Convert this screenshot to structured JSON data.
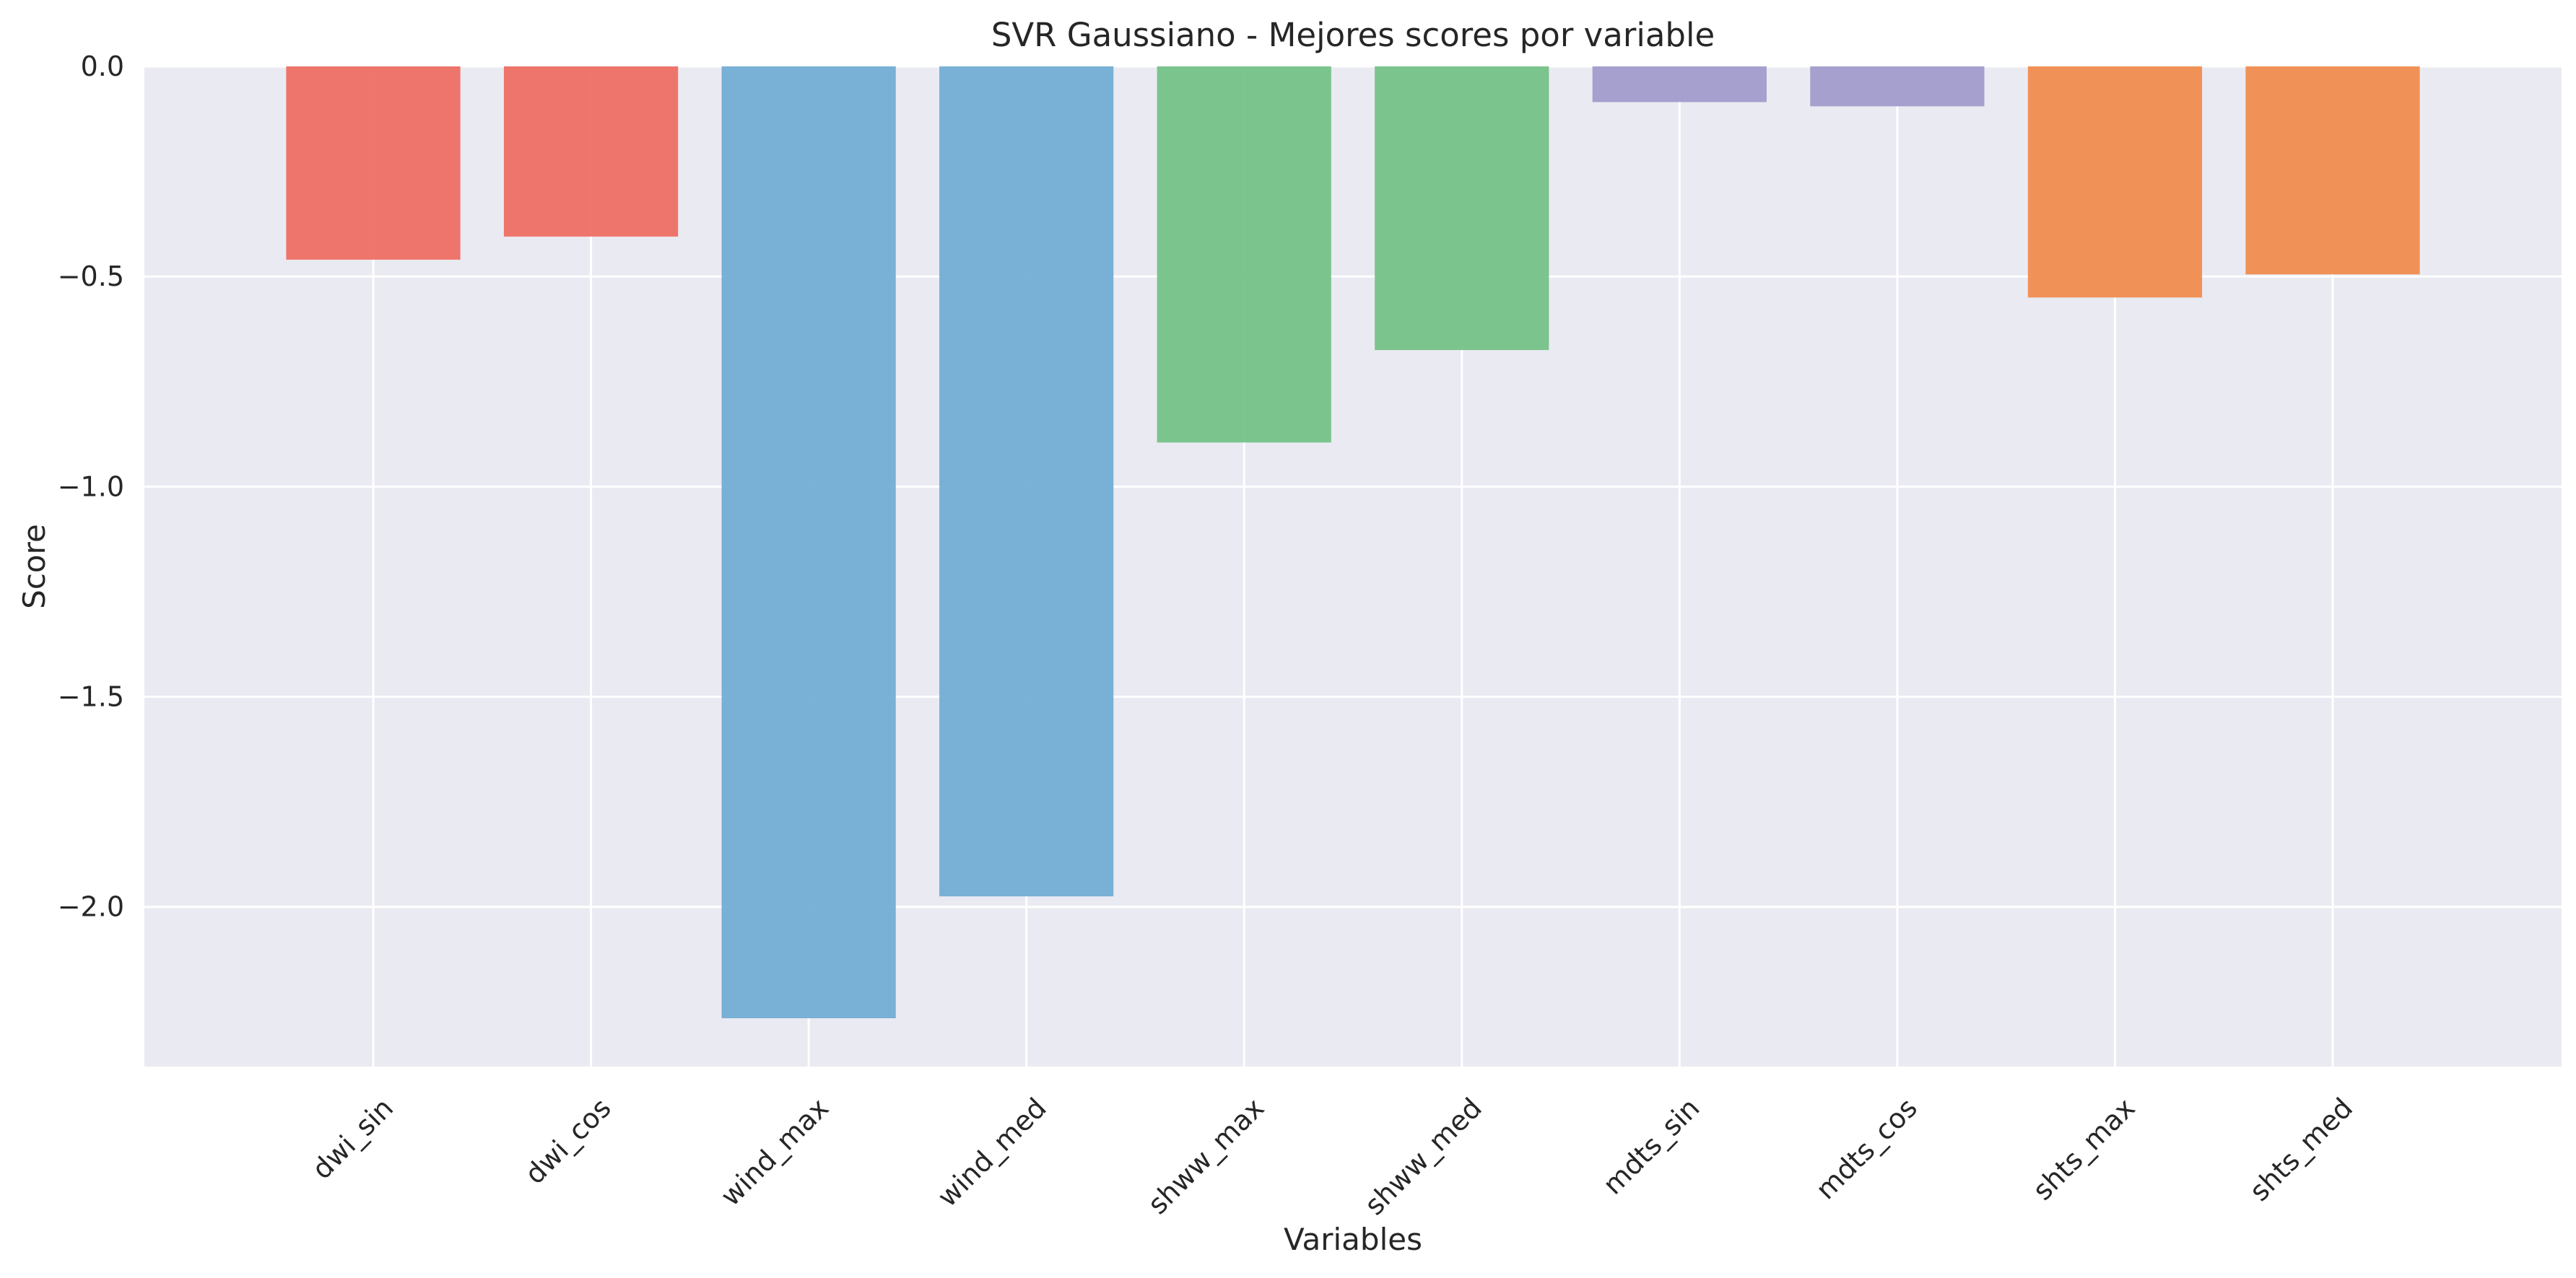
{
  "chart_data": {
    "type": "bar",
    "title": "SVR Gaussiano - Mejores scores por variable",
    "xlabel": "Variables",
    "ylabel": "Score",
    "categories": [
      "dwi_sin",
      "dwi_cos",
      "wind_max",
      "wind_med",
      "shww_max",
      "shww_med",
      "mdts_sin",
      "mdts_cos",
      "shts_max",
      "shts_med"
    ],
    "values": [
      -0.46,
      -0.405,
      -2.265,
      -1.975,
      -0.895,
      -0.675,
      -0.085,
      -0.095,
      -0.55,
      -0.495
    ],
    "colors": [
      "#ee6a60",
      "#ee6a60",
      "#6faad3",
      "#6faad3",
      "#72c084",
      "#72c084",
      "#9e99ca",
      "#9e99ca",
      "#f08a4b",
      "#f08a4b"
    ],
    "ylim": [
      -2.38,
      0.0
    ],
    "yticks": [
      0.0,
      -0.5,
      -1.0,
      -1.5,
      -2.0
    ],
    "ytick_labels": [
      "0.0",
      "−0.5",
      "−1.0",
      "−1.5",
      "−2.0"
    ],
    "grid": true,
    "background": "#eaeaf2",
    "grid_color": "#ffffff"
  }
}
